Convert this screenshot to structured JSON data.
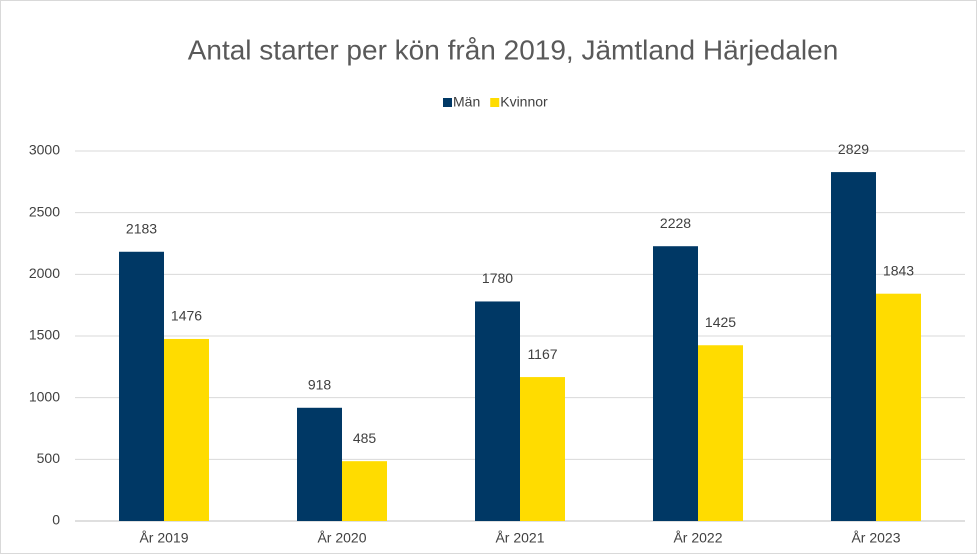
{
  "chart_data": {
    "type": "bar",
    "title": "Antal starter per kön från 2019, Jämtland Härjedalen",
    "categories": [
      "År 2019",
      "År 2020",
      "År 2021",
      "År 2022",
      "År 2023"
    ],
    "series": [
      {
        "name": "Män",
        "color": "#003865",
        "values": [
          2183,
          918,
          1780,
          2228,
          2829
        ]
      },
      {
        "name": "Kvinnor",
        "color": "#ffdc00",
        "values": [
          1476,
          485,
          1167,
          1425,
          1843
        ]
      }
    ],
    "ylim": [
      0,
      3000
    ],
    "yticks": [
      0,
      500,
      1000,
      1500,
      2000,
      2500,
      3000
    ],
    "grid": true,
    "legend": "top"
  }
}
